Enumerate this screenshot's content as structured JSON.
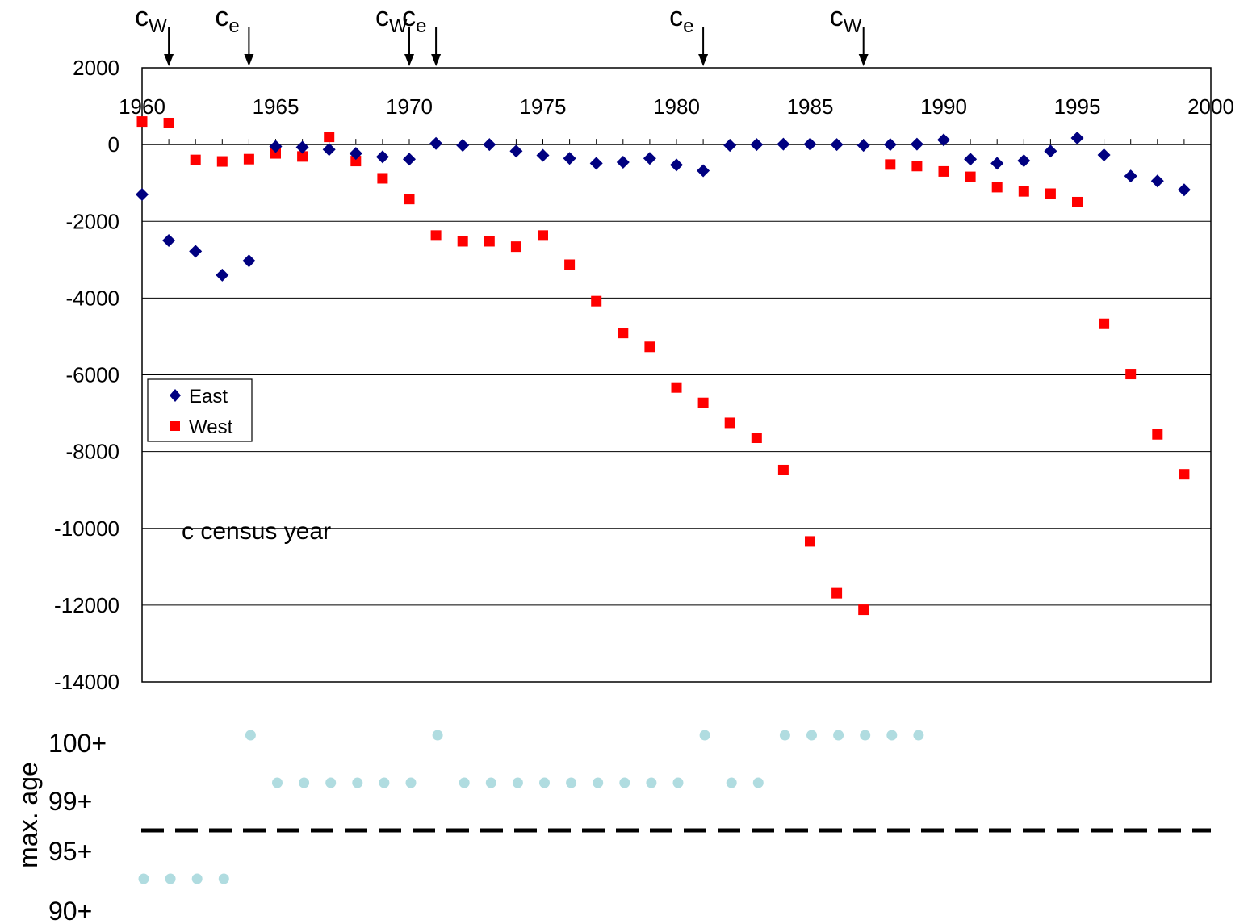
{
  "chart_data": [
    {
      "type": "scatter",
      "x_ticks": [
        "1960",
        "1965",
        "1970",
        "1975",
        "1980",
        "1985",
        "1990",
        "1995",
        "2000"
      ],
      "y_ticks": [
        "2000",
        "0",
        "-2000",
        "-4000",
        "-6000",
        "-8000",
        "-10000",
        "-12000",
        "-14000"
      ],
      "xlim": [
        1960,
        2000
      ],
      "ylim": [
        -14000,
        2000
      ],
      "grid": "horizontal",
      "legend_position": "left",
      "annotation": "c census year",
      "census_markers": [
        {
          "main": "c",
          "sub": "W",
          "year": 1961
        },
        {
          "main": "c",
          "sub": "e",
          "year": 1964
        },
        {
          "main": "c",
          "sub": "W",
          "year": 1970
        },
        {
          "main": "c",
          "sub": "e",
          "year": 1971
        },
        {
          "main": "c",
          "sub": "e",
          "year": 1981
        },
        {
          "main": "c",
          "sub": "W",
          "year": 1987
        }
      ],
      "series": [
        {
          "name": "East",
          "color": "#000080",
          "marker": "diamond",
          "x": [
            1960,
            1961,
            1962,
            1963,
            1964,
            1965,
            1966,
            1967,
            1968,
            1969,
            1970,
            1971,
            1972,
            1973,
            1974,
            1975,
            1976,
            1977,
            1978,
            1979,
            1980,
            1981,
            1982,
            1983,
            1984,
            1985,
            1986,
            1987,
            1988,
            1989,
            1990,
            1991,
            1992,
            1993,
            1994,
            1995,
            1996,
            1997,
            1998,
            1999
          ],
          "y": [
            -1300,
            -2500,
            -2780,
            -3400,
            -3030,
            -50,
            -70,
            -130,
            -230,
            -320,
            -380,
            30,
            -20,
            0,
            -170,
            -280,
            -360,
            -490,
            -460,
            -360,
            -530,
            -680,
            -20,
            0,
            10,
            10,
            0,
            -20,
            0,
            10,
            120,
            -380,
            -490,
            -420,
            -170,
            170,
            -270,
            -820,
            -950,
            -1180
          ]
        },
        {
          "name": "West",
          "color": "#ff0000",
          "marker": "square",
          "x": [
            1960,
            1961,
            1962,
            1963,
            1964,
            1965,
            1966,
            1967,
            1968,
            1969,
            1970,
            1971,
            1972,
            1973,
            1974,
            1975,
            1976,
            1977,
            1978,
            1979,
            1980,
            1981,
            1982,
            1983,
            1984,
            1985,
            1986,
            1987,
            1988,
            1989,
            1990,
            1991,
            1992,
            1993,
            1994,
            1995,
            1996,
            1997,
            1998,
            1999
          ],
          "y": [
            600,
            560,
            -400,
            -440,
            -380,
            -230,
            -310,
            200,
            -430,
            -880,
            -1420,
            -2370,
            -2520,
            -2520,
            -2660,
            -2370,
            -3130,
            -4080,
            -4910,
            -5270,
            -6330,
            -6730,
            -7250,
            -7640,
            -8480,
            -10340,
            -11690,
            -12120,
            -520,
            -560,
            -700,
            -840,
            -1110,
            -1220,
            -1280,
            -1500,
            -4670,
            -5980,
            -7550,
            -8590
          ]
        }
      ]
    },
    {
      "type": "scatter",
      "ylabel": "max. age",
      "y_levels": [
        "100+",
        "99+",
        "95+",
        "90+"
      ],
      "x": [
        1960,
        1961,
        1962,
        1963,
        1964,
        1965,
        1966,
        1967,
        1968,
        1969,
        1970,
        1971,
        1972,
        1973,
        1974,
        1975,
        1976,
        1977,
        1978,
        1979,
        1980,
        1981,
        1982,
        1983,
        1984,
        1985,
        1986,
        1987,
        1988,
        1989
      ],
      "values": [
        "90+",
        "90+",
        "90+",
        "90+",
        "100+",
        "99+",
        "99+",
        "99+",
        "99+",
        "99+",
        "99+",
        "100+",
        "99+",
        "99+",
        "99+",
        "99+",
        "99+",
        "99+",
        "99+",
        "99+",
        "99+",
        "100+",
        "99+",
        "99+",
        "100+",
        "100+",
        "100+",
        "100+",
        "100+",
        "100+"
      ],
      "marker_color": "#b0dce0",
      "threshold_line": "dashed"
    }
  ]
}
